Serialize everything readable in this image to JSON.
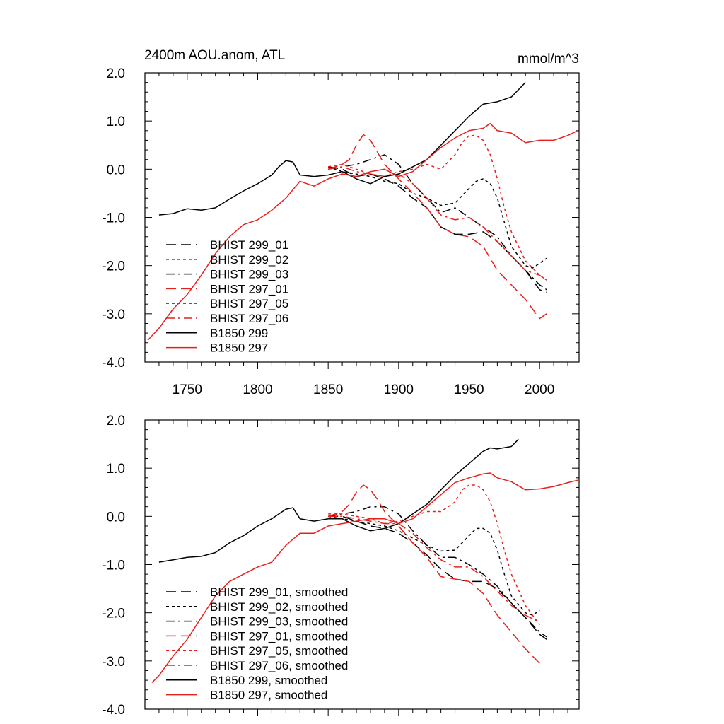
{
  "chart_data": [
    {
      "type": "line",
      "title": "2400m AOU.anom, ATL",
      "units": "mmol/m^3",
      "xlim": [
        1720,
        2028
      ],
      "ylim": [
        -4.0,
        2.0
      ],
      "xticks": [
        1750,
        1800,
        1850,
        1900,
        1950,
        2000
      ],
      "xtick_labels": [
        "1750",
        "1800",
        "1850",
        "1900",
        "1950",
        "2000"
      ],
      "yticks": [
        2.0,
        1.0,
        0.0,
        -1.0,
        -2.0,
        -3.0,
        -4.0
      ],
      "ytick_labels": [
        "2.0",
        "1.0",
        "0.0",
        "-1.0",
        "-2.0",
        "-3.0",
        "-4.0"
      ],
      "grid": false,
      "legend_position": "bottom-left",
      "series": [
        {
          "name": "BHIST 299_01",
          "color": "#000000",
          "dash": "long-dash",
          "x": [
            1850,
            1860,
            1870,
            1880,
            1890,
            1900,
            1910,
            1920,
            1930,
            1940,
            1950,
            1960,
            1970,
            1980,
            1990,
            2000,
            2005
          ],
          "y": [
            0.05,
            0.0,
            -0.15,
            -0.1,
            -0.2,
            -0.35,
            -0.6,
            -0.8,
            -1.2,
            -1.35,
            -1.35,
            -1.3,
            -1.5,
            -1.8,
            -2.1,
            -2.5,
            -2.55
          ]
        },
        {
          "name": "BHIST 299_02",
          "color": "#000000",
          "dash": "short-dash",
          "x": [
            1850,
            1860,
            1870,
            1880,
            1890,
            1900,
            1910,
            1920,
            1930,
            1940,
            1950,
            1955,
            1960,
            1965,
            1970,
            1975,
            1980,
            1990,
            1995,
            2000,
            2005
          ],
          "y": [
            0.05,
            -0.05,
            -0.1,
            -0.15,
            -0.25,
            -0.3,
            -0.5,
            -0.6,
            -0.75,
            -0.7,
            -0.4,
            -0.25,
            -0.2,
            -0.3,
            -0.6,
            -1.1,
            -1.6,
            -2.0,
            -2.05,
            -1.95,
            -1.85
          ]
        },
        {
          "name": "BHIST 299_03",
          "color": "#000000",
          "dash": "dash-dot",
          "x": [
            1850,
            1860,
            1870,
            1880,
            1890,
            1900,
            1910,
            1920,
            1930,
            1940,
            1950,
            1960,
            1970,
            1980,
            1990,
            2000,
            2005
          ],
          "y": [
            0.0,
            0.05,
            0.1,
            0.2,
            0.3,
            0.1,
            -0.3,
            -0.6,
            -0.9,
            -0.8,
            -1.0,
            -1.2,
            -1.4,
            -1.8,
            -2.1,
            -2.4,
            -2.5
          ]
        },
        {
          "name": "BHIST 297_01",
          "color": "#e8201c",
          "dash": "long-dash",
          "x": [
            1850,
            1860,
            1865,
            1870,
            1875,
            1880,
            1885,
            1890,
            1900,
            1910,
            1920,
            1930,
            1940,
            1950,
            1960,
            1970,
            1980,
            1990,
            2000,
            2005
          ],
          "y": [
            0.0,
            0.1,
            0.2,
            0.5,
            0.72,
            0.6,
            0.35,
            0.1,
            -0.2,
            -0.5,
            -0.8,
            -1.2,
            -1.35,
            -1.4,
            -1.6,
            -2.1,
            -2.4,
            -2.7,
            -3.1,
            -3.0
          ]
        },
        {
          "name": "BHIST 297_05",
          "color": "#e8201c",
          "dash": "short-dash",
          "x": [
            1850,
            1860,
            1870,
            1880,
            1890,
            1900,
            1910,
            1920,
            1930,
            1940,
            1945,
            1950,
            1955,
            1960,
            1965,
            1970,
            1975,
            1980,
            1990,
            2000,
            2005
          ],
          "y": [
            0.05,
            0.1,
            0.0,
            -0.1,
            -0.15,
            -0.05,
            0.0,
            0.1,
            0.0,
            0.3,
            0.55,
            0.7,
            0.7,
            0.6,
            0.3,
            -0.2,
            -0.8,
            -1.3,
            -1.9,
            -2.2,
            -2.3
          ]
        },
        {
          "name": "BHIST 297_06",
          "color": "#e8201c",
          "dash": "dash-dot",
          "x": [
            1850,
            1860,
            1870,
            1880,
            1890,
            1900,
            1910,
            1920,
            1930,
            1940,
            1950,
            1960,
            1970,
            1980,
            1990,
            2000,
            2005
          ],
          "y": [
            0.0,
            0.05,
            -0.05,
            -0.1,
            -0.15,
            -0.1,
            -0.3,
            -0.6,
            -0.95,
            -1.05,
            -1.0,
            -1.2,
            -1.5,
            -1.8,
            -2.1,
            -2.2,
            -2.3
          ]
        },
        {
          "name": "B1850 299",
          "color": "#000000",
          "dash": "solid",
          "x": [
            1730,
            1740,
            1750,
            1760,
            1770,
            1780,
            1790,
            1800,
            1810,
            1815,
            1820,
            1825,
            1830,
            1840,
            1850,
            1860,
            1870,
            1880,
            1890,
            1900,
            1910,
            1920,
            1930,
            1940,
            1950,
            1960,
            1970,
            1980,
            1990
          ],
          "y": [
            -0.95,
            -0.92,
            -0.82,
            -0.85,
            -0.8,
            -0.62,
            -0.45,
            -0.3,
            -0.12,
            0.05,
            0.18,
            0.15,
            -0.12,
            -0.15,
            -0.12,
            -0.05,
            -0.2,
            -0.3,
            -0.15,
            -0.1,
            0.05,
            0.2,
            0.5,
            0.8,
            1.1,
            1.35,
            1.4,
            1.5,
            1.8
          ]
        },
        {
          "name": "B1850 297",
          "color": "#e8201c",
          "dash": "solid",
          "x": [
            1722,
            1730,
            1740,
            1750,
            1760,
            1770,
            1780,
            1790,
            1800,
            1810,
            1820,
            1830,
            1840,
            1850,
            1860,
            1870,
            1880,
            1890,
            1900,
            1910,
            1920,
            1930,
            1940,
            1950,
            1960,
            1965,
            1970,
            1980,
            1990,
            2000,
            2010,
            2020,
            2027
          ],
          "y": [
            -3.55,
            -3.3,
            -2.9,
            -2.6,
            -2.2,
            -1.75,
            -1.4,
            -1.15,
            -1.05,
            -0.85,
            -0.6,
            -0.25,
            -0.35,
            -0.2,
            -0.1,
            -0.15,
            -0.05,
            0.0,
            -0.15,
            -0.05,
            0.2,
            0.45,
            0.65,
            0.8,
            0.85,
            0.95,
            0.8,
            0.75,
            0.55,
            0.6,
            0.6,
            0.7,
            0.8
          ]
        }
      ]
    },
    {
      "type": "line",
      "title": "",
      "units": "",
      "xlim": [
        1720,
        2028
      ],
      "ylim": [
        -4.0,
        2.0
      ],
      "xticks": [
        1750,
        1800,
        1850,
        1900,
        1950,
        2000
      ],
      "yticks": [
        2.0,
        1.0,
        0.0,
        -1.0,
        -2.0,
        -3.0,
        -4.0
      ],
      "ytick_labels": [
        "2.0",
        "1.0",
        "0.0",
        "-1.0",
        "-2.0",
        "-3.0",
        "-4.0"
      ],
      "grid": false,
      "legend_position": "bottom-left",
      "series": [
        {
          "name": "BHIST 299_01, smoothed",
          "color": "#000000",
          "dash": "long-dash",
          "x": [
            1850,
            1860,
            1870,
            1880,
            1890,
            1900,
            1910,
            1920,
            1930,
            1940,
            1950,
            1960,
            1970,
            1980,
            1990,
            2000,
            2005
          ],
          "y": [
            0.0,
            0.0,
            -0.1,
            -0.2,
            -0.25,
            -0.35,
            -0.55,
            -0.8,
            -1.1,
            -1.3,
            -1.35,
            -1.35,
            -1.5,
            -1.8,
            -2.1,
            -2.45,
            -2.55
          ]
        },
        {
          "name": "BHIST 299_02, smoothed",
          "color": "#000000",
          "dash": "short-dash",
          "x": [
            1850,
            1860,
            1870,
            1880,
            1890,
            1900,
            1910,
            1920,
            1930,
            1940,
            1950,
            1955,
            1960,
            1965,
            1970,
            1975,
            1980,
            1990,
            1995,
            2000
          ],
          "y": [
            0.0,
            -0.05,
            -0.1,
            -0.15,
            -0.2,
            -0.3,
            -0.45,
            -0.6,
            -0.72,
            -0.7,
            -0.4,
            -0.25,
            -0.25,
            -0.35,
            -0.7,
            -1.2,
            -1.65,
            -2.0,
            -2.05,
            -1.95
          ]
        },
        {
          "name": "BHIST 299_03, smoothed",
          "color": "#000000",
          "dash": "dash-dot",
          "x": [
            1850,
            1860,
            1870,
            1880,
            1890,
            1900,
            1910,
            1920,
            1930,
            1940,
            1950,
            1960,
            1970,
            1980,
            1990,
            2000,
            2005
          ],
          "y": [
            0.0,
            0.05,
            0.1,
            0.2,
            0.2,
            0.05,
            -0.3,
            -0.6,
            -0.85,
            -0.85,
            -1.0,
            -1.2,
            -1.45,
            -1.8,
            -2.1,
            -2.4,
            -2.5
          ]
        },
        {
          "name": "BHIST 297_01, smoothed",
          "color": "#e8201c",
          "dash": "long-dash",
          "x": [
            1850,
            1860,
            1865,
            1870,
            1875,
            1880,
            1885,
            1890,
            1900,
            1910,
            1920,
            1930,
            1940,
            1950,
            1960,
            1970,
            1980,
            1990,
            2000
          ],
          "y": [
            0.0,
            0.1,
            0.25,
            0.5,
            0.65,
            0.55,
            0.35,
            0.1,
            -0.2,
            -0.55,
            -0.85,
            -1.25,
            -1.3,
            -1.35,
            -1.6,
            -2.05,
            -2.4,
            -2.75,
            -3.05
          ]
        },
        {
          "name": "BHIST 297_05, smoothed",
          "color": "#e8201c",
          "dash": "short-dash",
          "x": [
            1850,
            1860,
            1870,
            1880,
            1890,
            1900,
            1910,
            1920,
            1930,
            1940,
            1945,
            1950,
            1955,
            1960,
            1965,
            1970,
            1975,
            1980,
            1990,
            2000
          ],
          "y": [
            0.05,
            0.05,
            0.0,
            -0.05,
            -0.15,
            -0.1,
            0.0,
            0.1,
            0.1,
            0.3,
            0.55,
            0.65,
            0.65,
            0.55,
            0.3,
            -0.15,
            -0.7,
            -1.2,
            -1.85,
            -2.25
          ]
        },
        {
          "name": "BHIST 297_06, smoothed",
          "color": "#e8201c",
          "dash": "dash-dot",
          "x": [
            1850,
            1860,
            1870,
            1880,
            1890,
            1900,
            1910,
            1920,
            1930,
            1940,
            1950,
            1960,
            1970,
            1980,
            1990,
            2000
          ],
          "y": [
            0.0,
            0.0,
            -0.05,
            -0.1,
            -0.15,
            -0.15,
            -0.35,
            -0.65,
            -0.9,
            -1.05,
            -1.05,
            -1.25,
            -1.55,
            -1.85,
            -2.05,
            -2.2
          ]
        },
        {
          "name": "B1850 299, smoothed",
          "color": "#000000",
          "dash": "solid",
          "x": [
            1730,
            1740,
            1750,
            1760,
            1770,
            1780,
            1790,
            1800,
            1810,
            1820,
            1825,
            1830,
            1840,
            1850,
            1860,
            1870,
            1880,
            1890,
            1900,
            1910,
            1920,
            1930,
            1940,
            1950,
            1960,
            1965,
            1970,
            1980,
            1985
          ],
          "y": [
            -0.95,
            -0.9,
            -0.85,
            -0.83,
            -0.75,
            -0.55,
            -0.4,
            -0.2,
            -0.05,
            0.15,
            0.18,
            -0.05,
            -0.1,
            -0.05,
            -0.05,
            -0.2,
            -0.3,
            -0.25,
            -0.15,
            0.05,
            0.25,
            0.55,
            0.85,
            1.1,
            1.35,
            1.42,
            1.4,
            1.45,
            1.6
          ]
        },
        {
          "name": "B1850 297, smoothed",
          "color": "#e8201c",
          "dash": "solid",
          "x": [
            1725,
            1730,
            1740,
            1750,
            1760,
            1770,
            1780,
            1790,
            1800,
            1810,
            1820,
            1830,
            1840,
            1850,
            1860,
            1870,
            1880,
            1890,
            1900,
            1910,
            1920,
            1930,
            1940,
            1950,
            1960,
            1965,
            1970,
            1980,
            1990,
            2000,
            2010,
            2020,
            2027
          ],
          "y": [
            -3.45,
            -3.3,
            -2.9,
            -2.55,
            -2.1,
            -1.65,
            -1.35,
            -1.2,
            -1.05,
            -0.95,
            -0.6,
            -0.35,
            -0.35,
            -0.2,
            -0.15,
            -0.1,
            -0.05,
            -0.05,
            -0.15,
            -0.05,
            0.2,
            0.45,
            0.7,
            0.8,
            0.88,
            0.9,
            0.8,
            0.72,
            0.55,
            0.57,
            0.62,
            0.7,
            0.75
          ]
        }
      ]
    }
  ]
}
